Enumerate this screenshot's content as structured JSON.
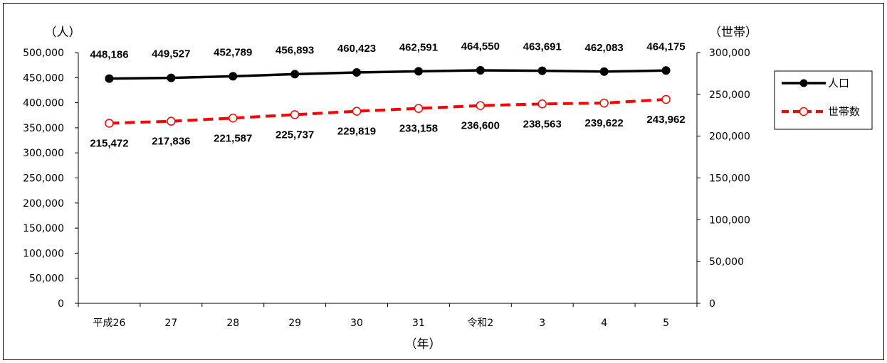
{
  "chart_data": {
    "type": "line",
    "categories": [
      "平成26",
      "27",
      "28",
      "29",
      "30",
      "31",
      "令和2",
      "3",
      "4",
      "5"
    ],
    "series": [
      {
        "name": "人口",
        "axis": "left",
        "color": "#000000",
        "line_style": "solid",
        "marker": "filled-circle",
        "values": [
          448186,
          449527,
          452789,
          456893,
          460423,
          462591,
          464550,
          463691,
          462083,
          464175
        ],
        "labels": [
          "448,186",
          "449,527",
          "452,789",
          "456,893",
          "460,423",
          "462,591",
          "464,550",
          "463,691",
          "462,083",
          "464,175"
        ]
      },
      {
        "name": "世帯数",
        "axis": "right",
        "color": "#ff0000",
        "line_style": "dashed",
        "marker": "hollow-circle",
        "values": [
          215472,
          217836,
          221587,
          225737,
          229819,
          233158,
          236600,
          238563,
          239622,
          243962
        ],
        "labels": [
          "215,472",
          "217,836",
          "221,587",
          "225,737",
          "229,819",
          "233,158",
          "236,600",
          "238,563",
          "239,622",
          "243,962"
        ]
      }
    ],
    "y_left": {
      "unit": "（人）",
      "ylim": [
        0,
        500000
      ],
      "ticks": [
        "0",
        "50,000",
        "100,000",
        "150,000",
        "200,000",
        "250,000",
        "300,000",
        "350,000",
        "400,000",
        "450,000",
        "500,000"
      ]
    },
    "y_right": {
      "unit": "（世帯）",
      "ylim": [
        0,
        300000
      ],
      "ticks": [
        "0",
        "50,000",
        "100,000",
        "150,000",
        "200,000",
        "250,000",
        "300,000"
      ]
    },
    "xlabel": "（年）",
    "legend_position": "right",
    "grid": false
  }
}
